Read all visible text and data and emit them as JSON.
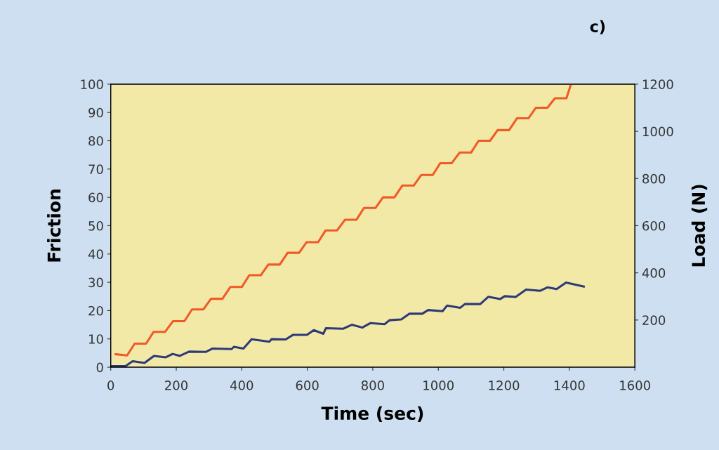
{
  "chart_data": {
    "type": "line",
    "xlabel": "Time (sec)",
    "ylabel": "Friction",
    "y2label": "Load (N)",
    "annotations": [
      "c)"
    ],
    "xlim": [
      0,
      1600
    ],
    "xticks": [
      0,
      200,
      400,
      600,
      800,
      1000,
      1200,
      1400,
      1600
    ],
    "ylim": [
      0,
      100
    ],
    "yticks": [
      0,
      10,
      20,
      30,
      40,
      50,
      60,
      70,
      80,
      90,
      100
    ],
    "y2lim": [
      0,
      1200
    ],
    "y2ticks": [
      200,
      400,
      600,
      800,
      1000,
      1200
    ],
    "series": [
      {
        "color": "#2e3a78",
        "x": [
          0,
          45,
          67,
          103,
          132,
          168,
          189,
          211,
          239,
          290,
          311,
          369,
          376,
          405,
          430,
          484,
          491,
          534,
          556,
          599,
          620,
          649,
          657,
          710,
          736,
          768,
          793,
          836,
          851,
          887,
          912,
          951,
          969,
          1013,
          1027,
          1067,
          1081,
          1128,
          1153,
          1189,
          1203,
          1236,
          1268,
          1311,
          1333,
          1361,
          1390,
          1444
        ],
        "values": [
          0.4,
          0.4,
          2.1,
          1.5,
          4.0,
          3.5,
          4.7,
          4.0,
          5.5,
          5.4,
          6.6,
          6.4,
          7.2,
          6.6,
          9.9,
          9.0,
          9.9,
          9.8,
          11.4,
          11.4,
          13.1,
          11.8,
          13.8,
          13.6,
          15.0,
          14.0,
          15.6,
          15.2,
          16.6,
          16.9,
          18.9,
          18.9,
          20.2,
          19.8,
          21.8,
          21.0,
          22.3,
          22.3,
          24.9,
          24.1,
          25.1,
          24.8,
          27.4,
          27.0,
          28.2,
          27.6,
          29.9,
          28.5
        ]
      },
      {
        "color": "#f05a28",
        "axis": "y2",
        "x": [
          15,
          50,
          73,
          108,
          131,
          166,
          190,
          225,
          248,
          283,
          306,
          341,
          365,
          400,
          423,
          458,
          481,
          516,
          540,
          575,
          598,
          633,
          656,
          691,
          715,
          750,
          773,
          808,
          831,
          866,
          890,
          925,
          948,
          983,
          1006,
          1041,
          1065,
          1100,
          1123,
          1158,
          1181,
          1216,
          1240,
          1275,
          1298,
          1333,
          1356,
          1391,
          1405
        ],
        "values": [
          55,
          50,
          100,
          100,
          150,
          150,
          195,
          195,
          245,
          245,
          290,
          290,
          340,
          340,
          390,
          390,
          435,
          435,
          485,
          485,
          530,
          530,
          580,
          580,
          625,
          625,
          675,
          675,
          720,
          720,
          770,
          770,
          815,
          815,
          865,
          865,
          910,
          910,
          960,
          960,
          1005,
          1005,
          1055,
          1055,
          1100,
          1100,
          1140,
          1140,
          1200
        ]
      }
    ]
  }
}
